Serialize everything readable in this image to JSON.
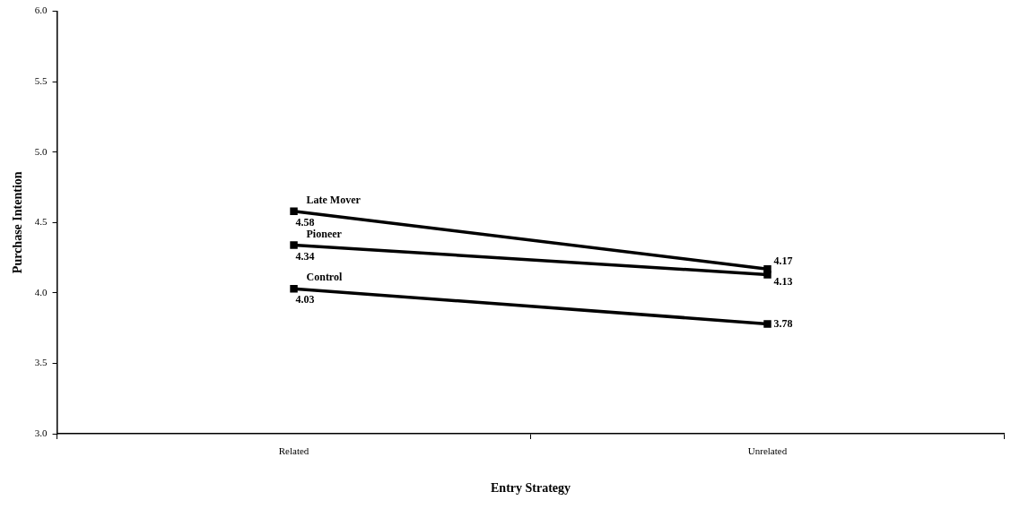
{
  "chart_data": {
    "type": "line",
    "xlabel": "Entry Strategy",
    "ylabel": "Purchase Intention",
    "categories": [
      "Related",
      "Unrelated"
    ],
    "series": [
      {
        "name": "Late Mover",
        "color": "#000000",
        "values": [
          4.58,
          4.17
        ]
      },
      {
        "name": "Pioneer",
        "color": "#000000",
        "values": [
          4.34,
          4.13
        ]
      },
      {
        "name": "Control",
        "color": "#000000",
        "values": [
          4.03,
          3.78
        ]
      }
    ],
    "ylim": [
      3,
      6
    ],
    "yticks": [
      {
        "value": 3,
        "label": "3.0"
      },
      {
        "value": 3.5,
        "label": "3.5"
      },
      {
        "value": 4,
        "label": "4.0"
      },
      {
        "value": 4.5,
        "label": "4.5"
      },
      {
        "value": 5,
        "label": "5.0"
      },
      {
        "value": 5.5,
        "label": "5.5"
      },
      {
        "value": 6,
        "label": "6.0"
      }
    ],
    "data_labels": true,
    "legend": false,
    "grid": false,
    "marker": "square",
    "line_style": "solid"
  }
}
